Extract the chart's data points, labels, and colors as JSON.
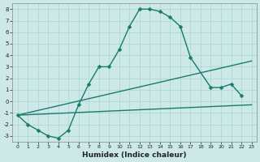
{
  "xlabel": "Humidex (Indice chaleur)",
  "background_color": "#cce9e7",
  "line_color": "#1a7a6e",
  "grid_color": "#aad4d0",
  "xlim": [
    -0.5,
    23.5
  ],
  "ylim": [
    -3.5,
    8.5
  ],
  "xticks": [
    0,
    1,
    2,
    3,
    4,
    5,
    6,
    7,
    8,
    9,
    10,
    11,
    12,
    13,
    14,
    15,
    16,
    17,
    18,
    19,
    20,
    21,
    22,
    23
  ],
  "yticks": [
    -3,
    -2,
    -1,
    0,
    1,
    2,
    3,
    4,
    5,
    6,
    7,
    8
  ],
  "curve_x": [
    0,
    1,
    2,
    3,
    4,
    5,
    6,
    7,
    8,
    9,
    10,
    11,
    12,
    13,
    14,
    15,
    16,
    17,
    19,
    20,
    21,
    22
  ],
  "curve_y": [
    -1.2,
    -2.0,
    -2.5,
    -3.0,
    -3.2,
    -2.5,
    -0.3,
    1.5,
    3.0,
    3.0,
    4.5,
    6.5,
    8.0,
    8.0,
    7.8,
    7.3,
    6.5,
    3.8,
    1.2,
    1.2,
    1.5,
    0.5
  ],
  "line1_x": [
    0,
    23
  ],
  "line1_y": [
    -1.2,
    3.5
  ],
  "line2_x": [
    0,
    23
  ],
  "line2_y": [
    -1.2,
    -0.3
  ],
  "markersize": 2.5,
  "linewidth": 1.0
}
